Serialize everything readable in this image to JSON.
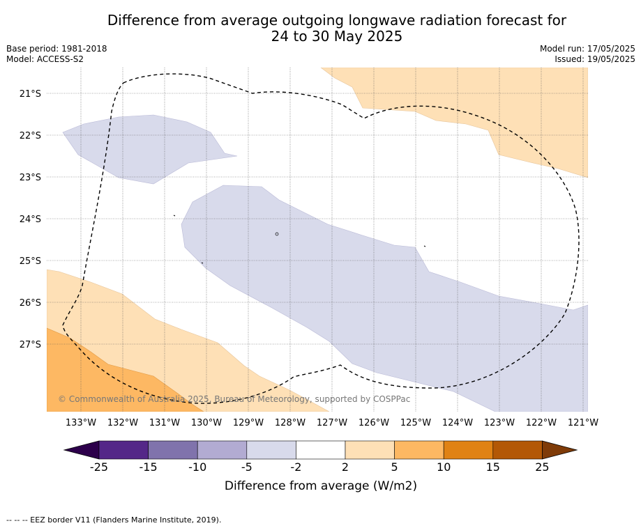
{
  "header": {
    "title_line1": "Difference from average outgoing longwave radiation forecast for",
    "title_line2": "24 to 30 May 2025",
    "base_period": "Base period: 1981-2018",
    "model": "Model: ACCESS-S2",
    "model_run": "Model run: 17/05/2025",
    "issued": "Issued: 19/05/2025"
  },
  "map": {
    "lat_labels": [
      "21°S",
      "22°S",
      "23°S",
      "24°S",
      "25°S",
      "26°S",
      "27°S"
    ],
    "lon_labels": [
      "133°W",
      "132°W",
      "131°W",
      "130°W",
      "129°W",
      "128°W",
      "127°W",
      "126°W",
      "125°W",
      "124°W",
      "123°W",
      "122°W",
      "121°W"
    ],
    "copyright": "© Commonwealth of Australia 2025, Bureau of Meteorology, supported by COSPPac"
  },
  "colorbar": {
    "tick_labels": [
      "-25",
      "-15",
      "-10",
      "-5",
      "-2",
      "2",
      "5",
      "10",
      "15",
      "25"
    ],
    "colors": [
      "#2d004b",
      "#542788",
      "#8073ac",
      "#b2abd2",
      "#d8daeb",
      "#ffffff",
      "#fee0b6",
      "#fdb863",
      "#e08214",
      "#b35806",
      "#7f3b08"
    ],
    "label": "Difference from average (W/m2)"
  },
  "footer": {
    "eez_legend": "--  --  -- EEZ border V11 (Flanders Marine Institute, 2019)."
  }
}
